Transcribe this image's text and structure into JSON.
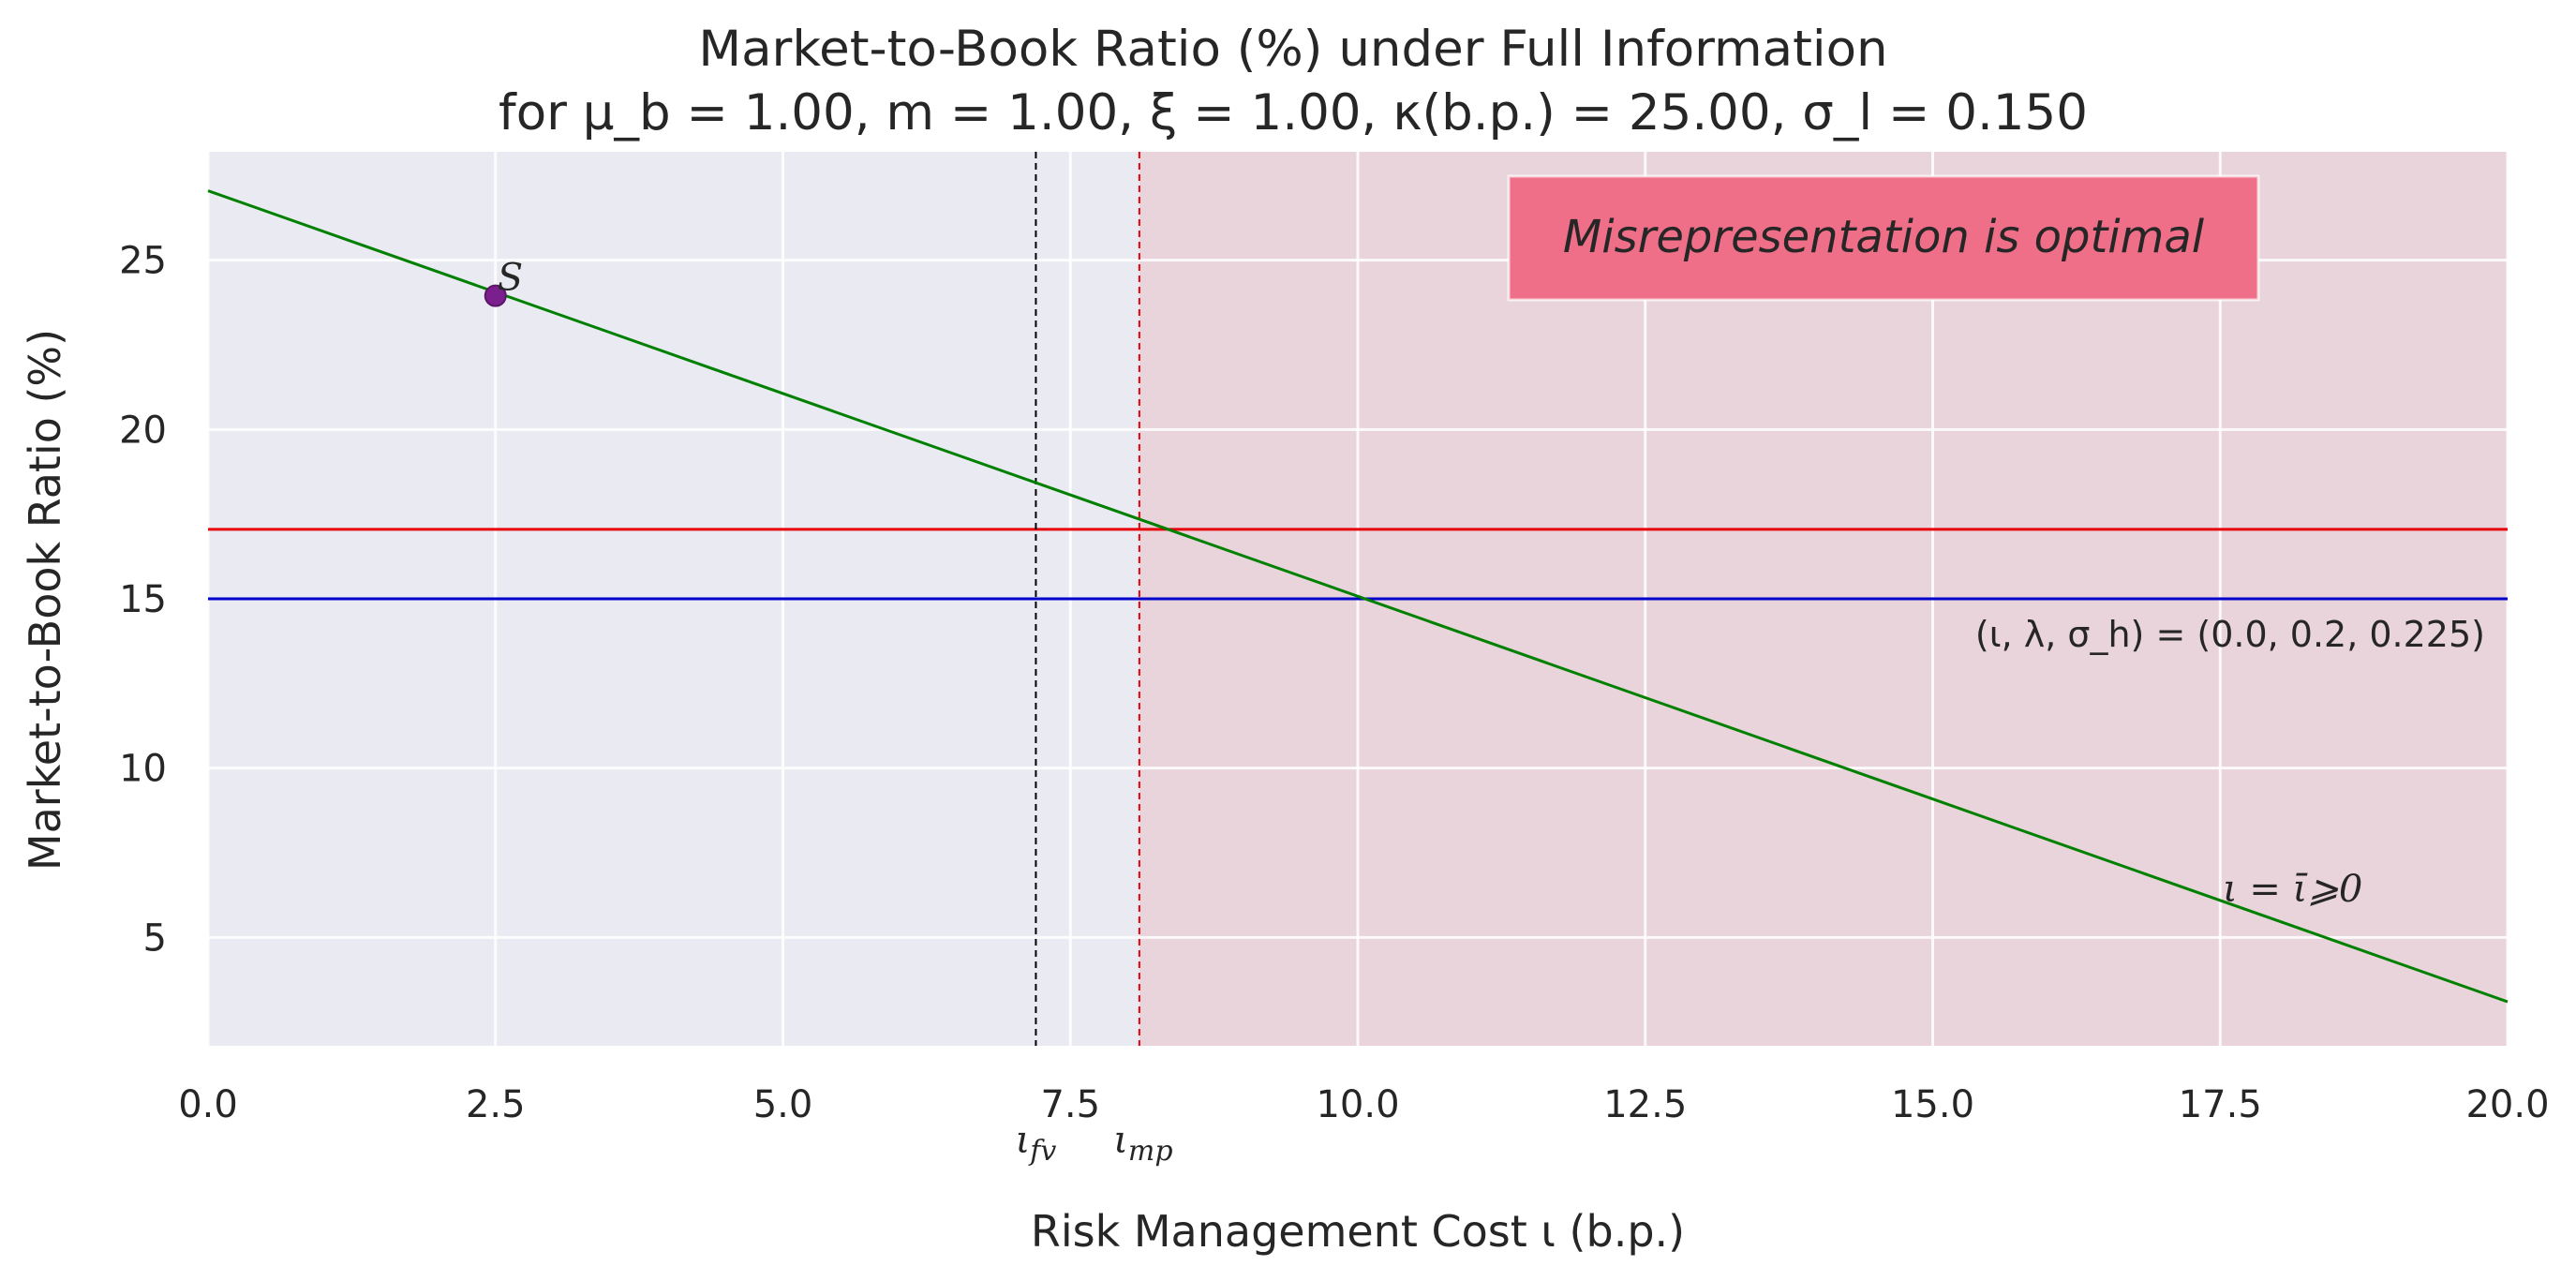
{
  "chart_data": {
    "type": "line",
    "title_line1": "Market-to-Book Ratio (%) under Full Information",
    "title_line2": "for μ_b = 1.00, m = 1.00, ξ = 1.00, κ(b.p.) = 25.00, σ_l = 0.150",
    "xlabel": "Risk Management Cost ι (b.p.)",
    "ylabel": "Market-to-Book Ratio (%)",
    "xlim": [
      0,
      20
    ],
    "ylim": [
      1.8,
      28.2
    ],
    "x_ticks": [
      0,
      2.5,
      5,
      7.5,
      10,
      12.5,
      15,
      17.5,
      20
    ],
    "x_tick_labels": [
      "0.0",
      "2.5",
      "5.0",
      "7.5",
      "10.0",
      "12.5",
      "15.0",
      "17.5",
      "20.0"
    ],
    "y_ticks": [
      5,
      10,
      15,
      20,
      25
    ],
    "y_tick_labels": [
      "5",
      "10",
      "15",
      "20",
      "25"
    ],
    "grid": true,
    "colors": {
      "background": "#eaeaf2",
      "misrep_region": "#e8d4da",
      "grid": "#ffffff",
      "mtb_line": "#008000",
      "red_line": "#e8000b",
      "blue_line": "#0000cc",
      "point": "#7b1f8f",
      "box": "#ef6f88"
    },
    "series": [
      {
        "values": [
          [
            0,
            27.05
          ],
          [
            20,
            3.1
          ]
        ]
      }
    ],
    "horizontal_lines": [
      {
        "y": 17.05,
        "color": "#e8000b"
      },
      {
        "y": 15.0,
        "color": "#0000cc"
      }
    ],
    "vertical_lines": [
      {
        "x": 7.2,
        "color": "#000000",
        "label": "ι_fv"
      },
      {
        "x": 8.1,
        "color": "#e8000b",
        "label": "ι_mp"
      }
    ],
    "shaded_region": {
      "x_start": 8.1,
      "x_end": 20
    },
    "point": {
      "x": 2.5,
      "y": 23.95,
      "label": "S"
    },
    "annotations": {
      "params": "(ι, λ, σ_h) = (0.0, 0.2, 0.225)",
      "iota_bar": "ι = ῑ⩾0",
      "misrep_box": "Misrepresentation is optimal"
    }
  }
}
